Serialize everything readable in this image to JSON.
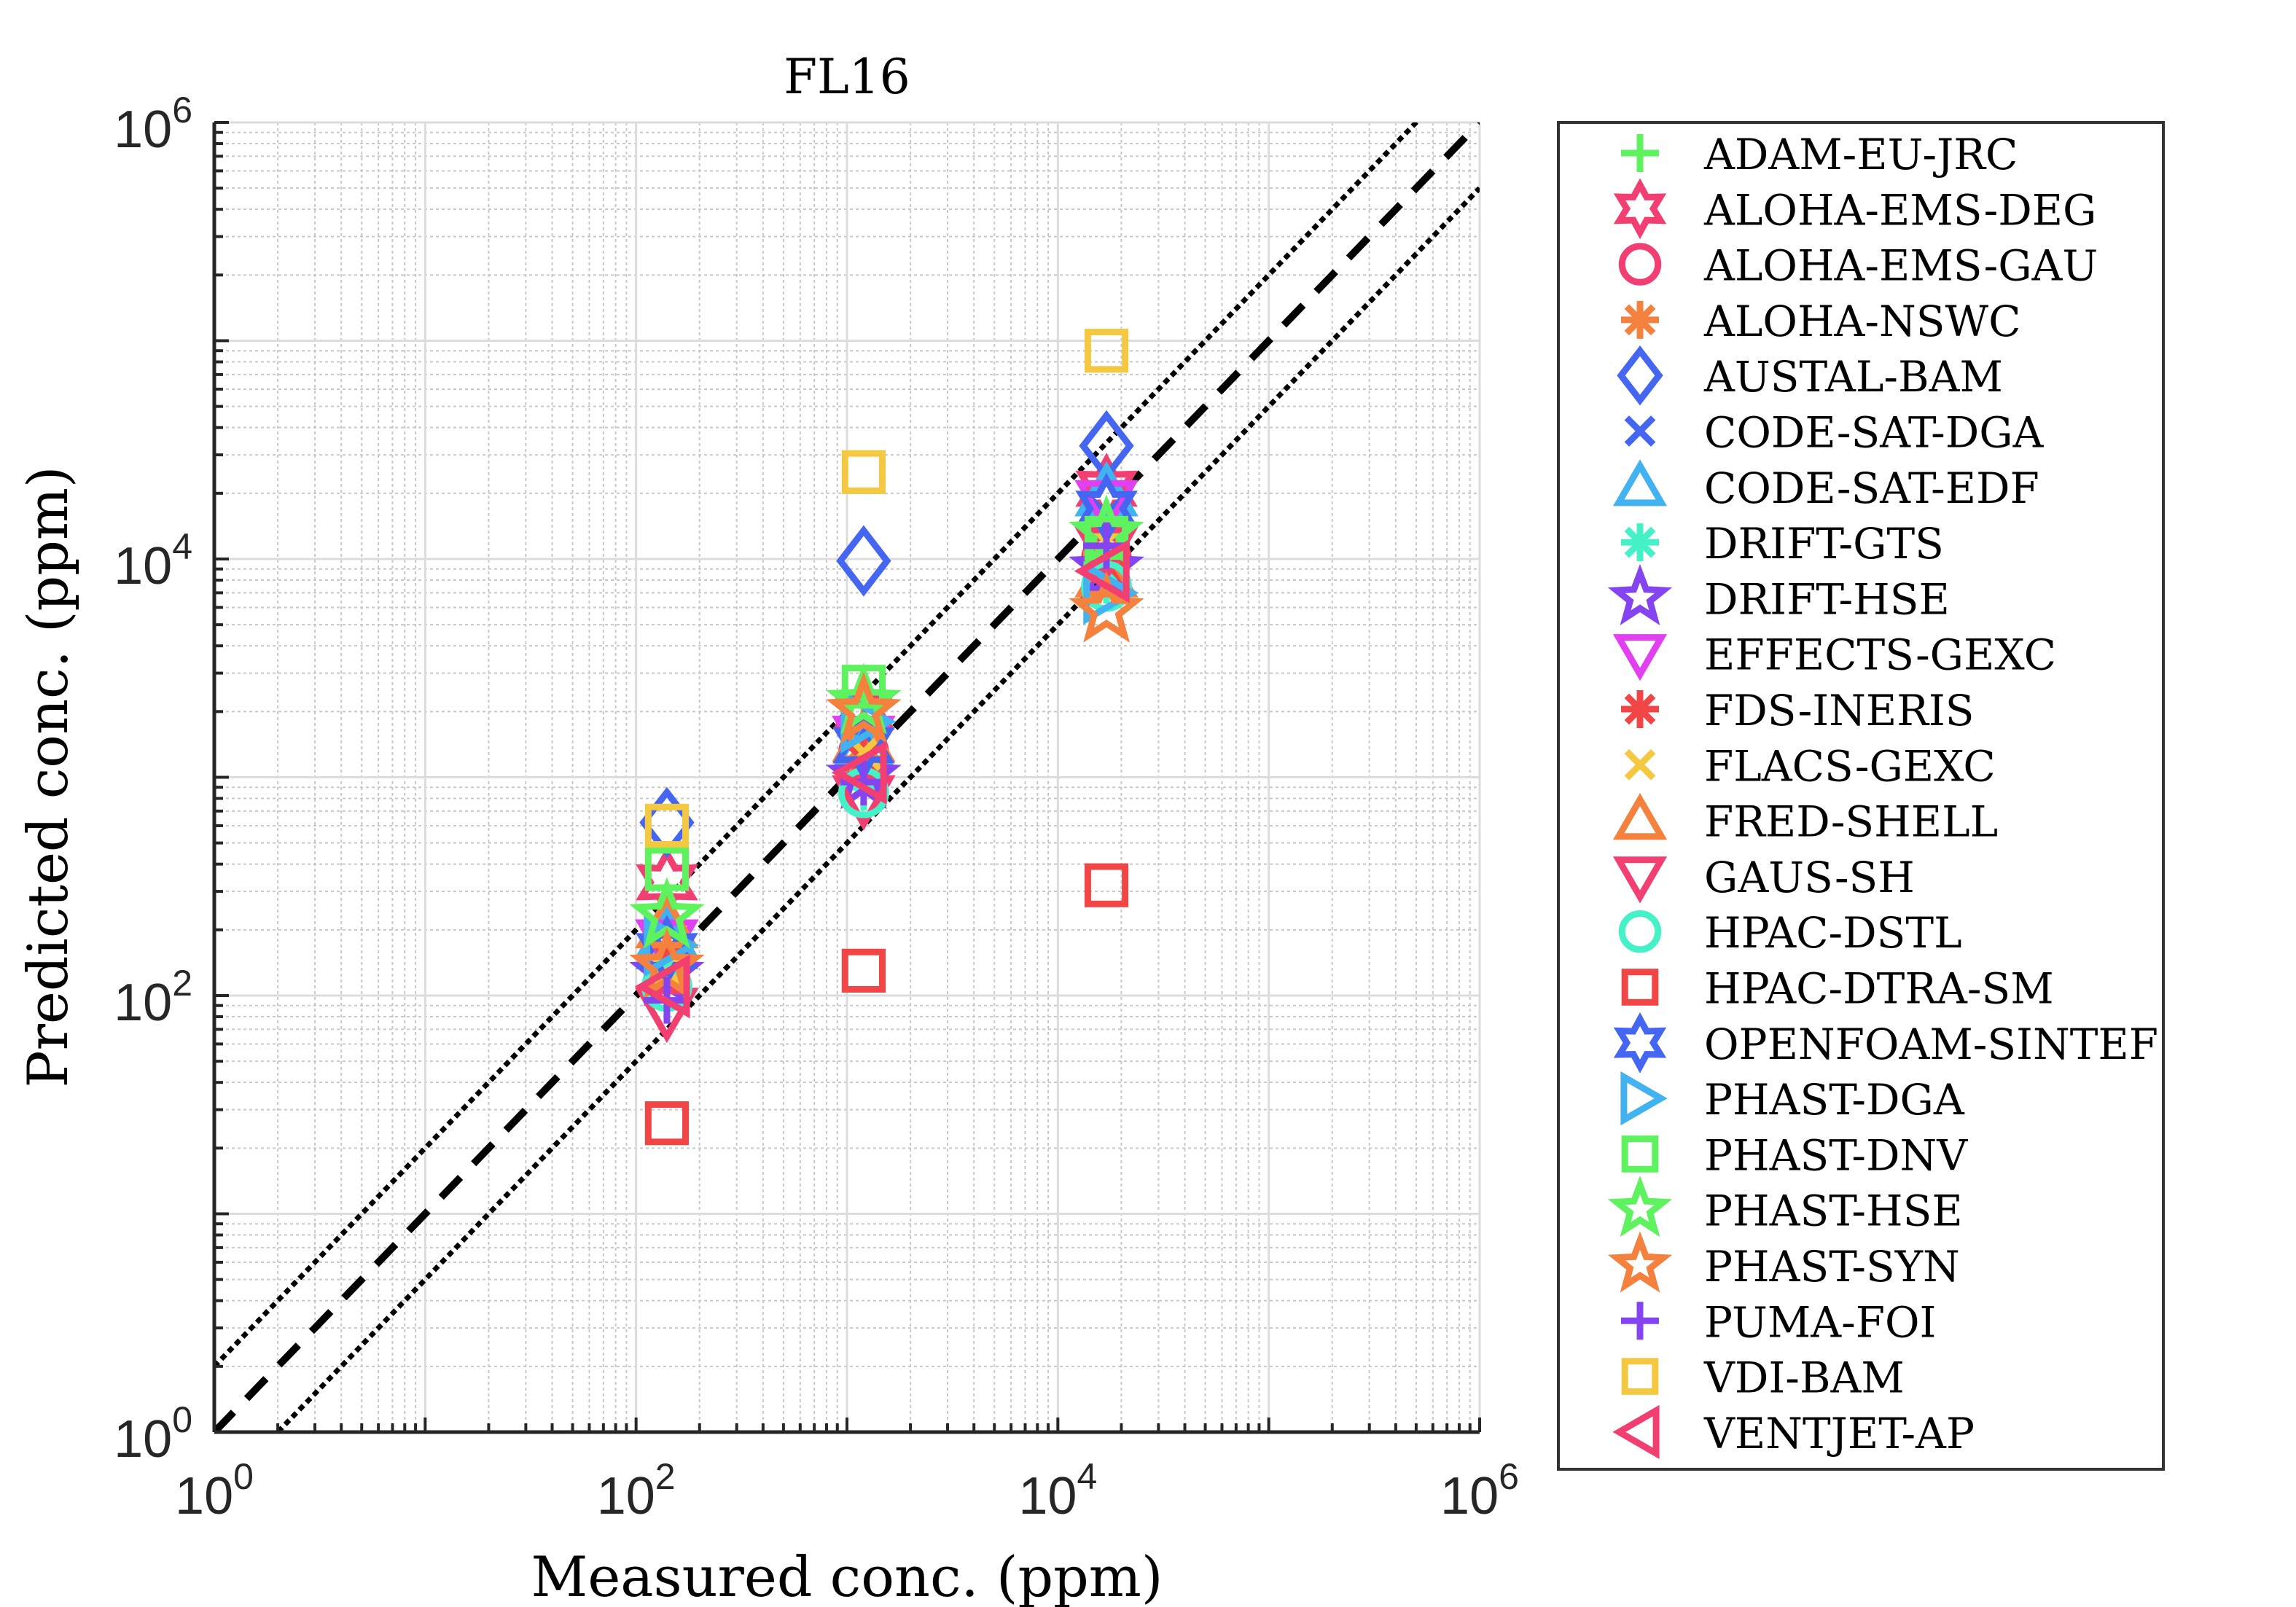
{
  "chart_data": {
    "type": "scatter",
    "title": "FL16",
    "xlabel": "Measured conc. (ppm)",
    "ylabel": "Predicted conc. (ppm)",
    "xscale": "log",
    "yscale": "log",
    "xlim": [
      1,
      1000000
    ],
    "ylim": [
      1,
      1000000
    ],
    "x_ticks": [
      {
        "base": "10",
        "exp": "0",
        "value": 1
      },
      {
        "base": "10",
        "exp": "2",
        "value": 100
      },
      {
        "base": "10",
        "exp": "4",
        "value": 10000
      },
      {
        "base": "10",
        "exp": "6",
        "value": 1000000
      }
    ],
    "y_ticks": [
      {
        "base": "10",
        "exp": "0",
        "value": 1
      },
      {
        "base": "10",
        "exp": "2",
        "value": 100
      },
      {
        "base": "10",
        "exp": "4",
        "value": 10000
      },
      {
        "base": "10",
        "exp": "6",
        "value": 1000000
      }
    ],
    "grid": "major and minor",
    "legend_position": "outside-right",
    "reference_lines": [
      {
        "name": "1:1",
        "factor": 1,
        "style": "dashed",
        "color": "#000000"
      },
      {
        "name": "factor-2-upper",
        "factor": 2,
        "style": "dotted",
        "color": "#000000"
      },
      {
        "name": "factor-2-lower",
        "factor": 0.5,
        "style": "dotted",
        "color": "#000000"
      }
    ],
    "series": [
      {
        "name": "ADAM-EU-JRC",
        "marker": "plus",
        "color": "#5ef25e",
        "points": [
          [
            140,
            200
          ],
          [
            1200,
            2300
          ],
          [
            17000,
            14000
          ]
        ]
      },
      {
        "name": "ALOHA-EMS-DEG",
        "marker": "hexagram",
        "color": "#f23f72",
        "points": [
          [
            140,
            330
          ],
          [
            1200,
            2000
          ],
          [
            17000,
            21000
          ]
        ]
      },
      {
        "name": "ALOHA-EMS-GAU",
        "marker": "circle",
        "color": "#f23f72",
        "points": [
          [
            140,
            150
          ],
          [
            1200,
            1300
          ],
          [
            17000,
            10000
          ]
        ]
      },
      {
        "name": "ALOHA-NSWC",
        "marker": "asterisk",
        "color": "#f5813e",
        "points": [
          [
            140,
            140
          ],
          [
            1200,
            1400
          ],
          [
            17000,
            10500
          ]
        ]
      },
      {
        "name": "AUSTAL-BAM",
        "marker": "diamond",
        "color": "#4466f0",
        "points": [
          [
            140,
            620
          ],
          [
            1200,
            9800
          ],
          [
            17000,
            33000
          ]
        ]
      },
      {
        "name": "CODE-SAT-DGA",
        "marker": "x",
        "color": "#4466f0",
        "points": [
          [
            140,
            160
          ],
          [
            1200,
            1600
          ],
          [
            17000,
            16000
          ]
        ]
      },
      {
        "name": "CODE-SAT-EDF",
        "marker": "triangle-up",
        "color": "#42b2f0",
        "points": [
          [
            140,
            190
          ],
          [
            1200,
            1400
          ],
          [
            17000,
            20000
          ]
        ]
      },
      {
        "name": "DRIFT-GTS",
        "marker": "asterisk",
        "color": "#45f2c8",
        "points": [
          [
            140,
            115
          ],
          [
            1200,
            900
          ],
          [
            17000,
            8000
          ]
        ]
      },
      {
        "name": "DRIFT-HSE",
        "marker": "pentagram",
        "color": "#8445f0",
        "points": [
          [
            140,
            125
          ],
          [
            1200,
            1000
          ],
          [
            17000,
            9000
          ]
        ]
      },
      {
        "name": "EFFECTS-GEXC",
        "marker": "triangle-down",
        "color": "#e040f0",
        "points": [
          [
            140,
            175
          ],
          [
            1200,
            1500
          ],
          [
            17000,
            18000
          ]
        ]
      },
      {
        "name": "FDS-INERIS",
        "marker": "asterisk",
        "color": "#f24545",
        "points": [
          [
            140,
            150
          ],
          [
            1200,
            1200
          ],
          [
            17000,
            9500
          ]
        ]
      },
      {
        "name": "FLACS-GEXC",
        "marker": "x",
        "color": "#f5c842",
        "points": [
          [
            140,
            130
          ],
          [
            1200,
            1300
          ],
          [
            17000,
            12000
          ]
        ]
      },
      {
        "name": "FRED-SHELL",
        "marker": "triangle-up",
        "color": "#f5813e",
        "points": [
          [
            140,
            210
          ],
          [
            1200,
            1500
          ],
          [
            17000,
            8500
          ]
        ]
      },
      {
        "name": "GAUS-SH",
        "marker": "triangle-down",
        "color": "#f23f72",
        "points": [
          [
            140,
            85
          ],
          [
            1200,
            800
          ],
          [
            17000,
            11000
          ]
        ]
      },
      {
        "name": "HPAC-DSTL",
        "marker": "circle",
        "color": "#45f2c8",
        "points": [
          [
            140,
            110
          ],
          [
            1200,
            850
          ],
          [
            17000,
            7500
          ]
        ]
      },
      {
        "name": "HPAC-DTRA-SM",
        "marker": "square",
        "color": "#f24545",
        "points": [
          [
            140,
            26
          ],
          [
            1200,
            130
          ],
          [
            17000,
            320
          ]
        ]
      },
      {
        "name": "OPENFOAM-SINTEF",
        "marker": "hexagram",
        "color": "#4466f0",
        "points": [
          [
            140,
            160
          ],
          [
            1200,
            1400
          ],
          [
            17000,
            17000
          ]
        ]
      },
      {
        "name": "PHAST-DGA",
        "marker": "triangle-right",
        "color": "#42b2f0",
        "points": [
          [
            140,
            170
          ],
          [
            1200,
            1800
          ],
          [
            17000,
            7000
          ]
        ]
      },
      {
        "name": "PHAST-DNV",
        "marker": "square",
        "color": "#5ef25e",
        "points": [
          [
            140,
            380
          ],
          [
            1200,
            2600
          ],
          [
            17000,
            12500
          ]
        ]
      },
      {
        "name": "PHAST-HSE",
        "marker": "pentagram",
        "color": "#5ef25e",
        "points": [
          [
            140,
            230
          ],
          [
            1200,
            2200
          ],
          [
            17000,
            13000
          ]
        ]
      },
      {
        "name": "PHAST-SYN",
        "marker": "pentagram",
        "color": "#f5813e",
        "points": [
          [
            140,
            135
          ],
          [
            1200,
            2000
          ],
          [
            17000,
            5800
          ]
        ]
      },
      {
        "name": "PUMA-FOI",
        "marker": "plus",
        "color": "#8445f0",
        "points": [
          [
            140,
            95
          ],
          [
            1200,
            950
          ],
          [
            17000,
            11500
          ]
        ]
      },
      {
        "name": "VDI-BAM",
        "marker": "square",
        "color": "#f5c842",
        "points": [
          [
            140,
            600
          ],
          [
            1200,
            25000
          ],
          [
            17000,
            90000
          ]
        ]
      },
      {
        "name": "VENTJET-AP",
        "marker": "triangle-left",
        "color": "#f23f72",
        "points": [
          [
            140,
            110
          ],
          [
            1200,
            1050
          ],
          [
            17000,
            8800
          ]
        ]
      }
    ]
  }
}
